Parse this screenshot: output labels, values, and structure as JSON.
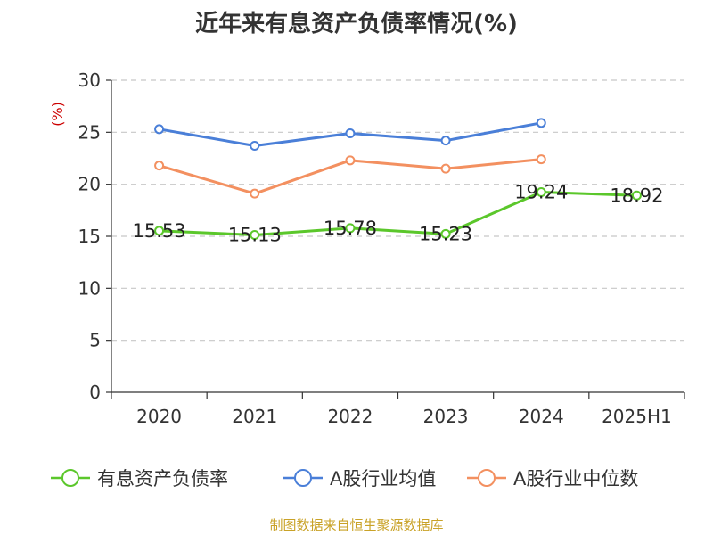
{
  "chart_data": {
    "type": "line",
    "title": "近年来有息资产负债率情况(%)",
    "ylabel": "(%)",
    "xlabel": "",
    "categories": [
      "2020",
      "2021",
      "2022",
      "2023",
      "2024",
      "2025H1"
    ],
    "ylim": [
      0,
      30
    ],
    "yticks": [
      0,
      5,
      10,
      15,
      20,
      25,
      30
    ],
    "grid": "horizontal-dashed",
    "legend_position": "bottom",
    "series": [
      {
        "name": "有息资产负债率",
        "color": "#5bc72b",
        "values": [
          15.53,
          15.13,
          15.78,
          15.23,
          19.24,
          18.92
        ],
        "labels": [
          "15.53",
          "15.13",
          "15.78",
          "15.23",
          "19.24",
          "18.92"
        ]
      },
      {
        "name": "A股行业均值",
        "color": "#4a7fd8",
        "values": [
          25.3,
          23.7,
          24.9,
          24.2,
          25.9,
          null
        ]
      },
      {
        "name": "A股行业中位数",
        "color": "#f39060",
        "values": [
          21.8,
          19.1,
          22.3,
          21.5,
          22.4,
          null
        ]
      }
    ]
  },
  "source": "制图数据来自恒生聚源数据库"
}
